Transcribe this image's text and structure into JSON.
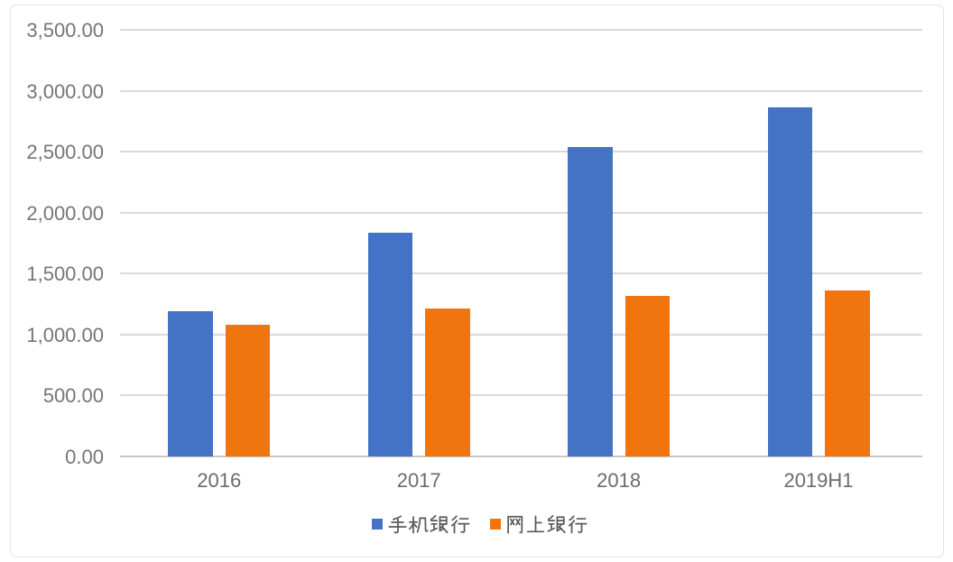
{
  "chart_data": {
    "type": "bar",
    "title": "",
    "categories": [
      "2016",
      "2017",
      "2018",
      "2019H1"
    ],
    "series": [
      {
        "name": "手机银行",
        "color": "#4472c4",
        "values": [
          1190,
          1835,
          2540,
          2860
        ]
      },
      {
        "name": "网上银行",
        "color": "#f1750e",
        "values": [
          1080,
          1215,
          1320,
          1365
        ]
      }
    ],
    "ylim": [
      0,
      3500
    ],
    "ytick_step": 500,
    "ytick_labels": [
      "0.00",
      "500.00",
      "1,000.00",
      "1,500.00",
      "2,000.00",
      "2,500.00",
      "3,000.00",
      "3,500.00"
    ],
    "grid": "horizontal",
    "legend_position": "bottom"
  },
  "style": {
    "background": "#ffffff",
    "card_border": "#e4e4e6",
    "gridline": "#d9d9d9",
    "axis_line": "#c7c7c7",
    "axis_text": "#757575",
    "legend_text": "#595959"
  }
}
